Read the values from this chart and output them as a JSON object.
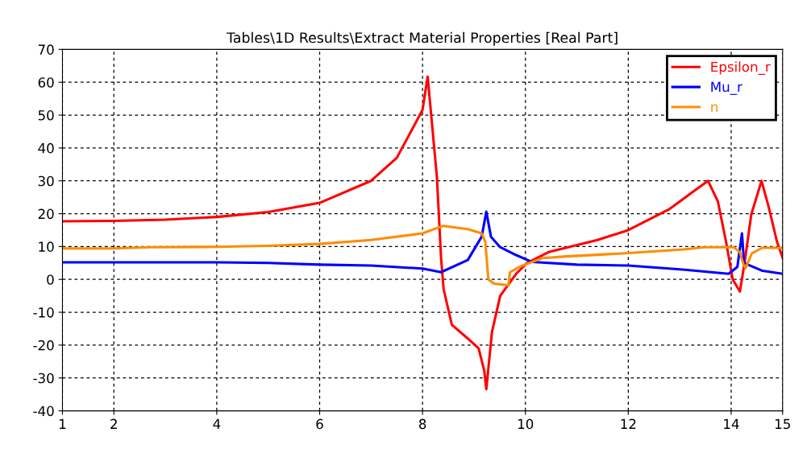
{
  "chart_data": {
    "type": "line",
    "title": "Tables\\1D Results\\Extract Material Properties [Real Part]",
    "xlim": [
      1,
      15
    ],
    "xticks": [
      1,
      2,
      4,
      6,
      8,
      10,
      12,
      14,
      15
    ],
    "ylim": [
      -40,
      70
    ],
    "yticks": [
      -40,
      -30,
      -20,
      -10,
      0,
      10,
      20,
      30,
      40,
      50,
      60,
      70
    ],
    "grid": true,
    "legend": "top right",
    "line_style": "solid",
    "marker": "none",
    "series": [
      {
        "name": "Epsilon_r",
        "color": "#ff0000",
        "x": [
          1,
          2,
          3,
          4,
          5,
          6,
          7,
          7.5,
          8,
          8.1,
          8.28,
          8.36,
          8.41,
          8.57,
          8.88,
          9.09,
          9.2,
          9.24,
          9.35,
          9.51,
          9.82,
          10.03,
          10.45,
          11.4,
          12,
          12.8,
          13.27,
          13.55,
          13.74,
          13.9,
          14.03,
          14.17,
          14.26,
          14.39,
          14.59,
          14.73,
          14.89,
          15
        ],
        "values": [
          17.7,
          17.8,
          18.2,
          19,
          20.5,
          23.3,
          30,
          37,
          51.6,
          61.7,
          31,
          6.6,
          -3,
          -13.8,
          -18,
          -21,
          -27.8,
          -33.4,
          -16,
          -5,
          1.7,
          5,
          8.3,
          12,
          15,
          21.4,
          26.8,
          30,
          23.8,
          11.5,
          0,
          -3.7,
          5,
          19.7,
          30,
          22,
          11.5,
          6.6
        ]
      },
      {
        "name": "Mu_r",
        "color": "#0000ff",
        "x": [
          1,
          2,
          4,
          5,
          6,
          7,
          8,
          8.36,
          8.88,
          9.15,
          9.24,
          9.33,
          9.51,
          9.82,
          10.13,
          11,
          12,
          13.06,
          13.95,
          14.12,
          14.21,
          14.25,
          14.61,
          15
        ],
        "values": [
          5.2,
          5.2,
          5.2,
          5,
          4.5,
          4.2,
          3.3,
          2.2,
          5.9,
          13,
          20.6,
          13,
          9.8,
          7.4,
          5.3,
          4.5,
          4.2,
          3,
          1.7,
          3.8,
          14,
          5,
          2.6,
          1.7
        ]
      },
      {
        "name": "n",
        "color": "#ff8c00",
        "x": [
          1,
          2,
          2.7,
          4,
          5,
          6,
          7,
          8,
          8.4,
          8.88,
          9.15,
          9.22,
          9.28,
          9.39,
          9.67,
          9.7,
          9.92,
          10.34,
          10.8,
          12,
          13.06,
          13.5,
          14.05,
          14.17,
          14.23,
          14.28,
          14.4,
          14.6,
          15
        ],
        "values": [
          9.4,
          9.4,
          9.8,
          9.9,
          10.2,
          10.8,
          12,
          14,
          16.3,
          15.3,
          14,
          11.5,
          0,
          -1.3,
          -1.8,
          2.2,
          4.1,
          6.5,
          7,
          8,
          9.1,
          9.8,
          9.8,
          8.3,
          5,
          3.4,
          7.9,
          9.6,
          9.6
        ]
      }
    ]
  }
}
